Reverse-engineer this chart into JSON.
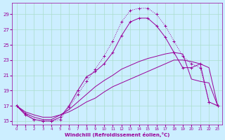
{
  "xlabel": "Windchill (Refroidissement éolien,°C)",
  "background_color": "#cceeff",
  "grid_color": "#aaddcc",
  "line_color": "#990099",
  "x_ticks": [
    0,
    1,
    2,
    3,
    4,
    5,
    6,
    7,
    8,
    9,
    10,
    11,
    12,
    13,
    14,
    15,
    16,
    17,
    18,
    19,
    20,
    21,
    22,
    23
  ],
  "ylim": [
    14.5,
    30.5
  ],
  "xlim": [
    -0.5,
    23.5
  ],
  "yticks": [
    15,
    17,
    19,
    21,
    23,
    25,
    27,
    29
  ],
  "curve_top_dotted_x": [
    0,
    1,
    2,
    3,
    4,
    5,
    6,
    7,
    8,
    9,
    10,
    11,
    12,
    13,
    14,
    15,
    16,
    17,
    18,
    19,
    20,
    21,
    22,
    23
  ],
  "curve_top_dotted_y": [
    17.0,
    16.0,
    15.2,
    15.0,
    15.0,
    15.2,
    16.8,
    18.5,
    20.2,
    21.8,
    23.5,
    25.5,
    28.0,
    29.5,
    29.8,
    29.8,
    29.0,
    27.5,
    25.5,
    23.5,
    22.5,
    22.0,
    17.5,
    17.0
  ],
  "curve_second_solid_x": [
    0,
    1,
    2,
    3,
    4,
    5,
    6,
    7,
    8,
    9,
    10,
    11,
    12,
    13,
    14,
    15,
    16,
    17,
    18,
    19,
    20,
    21,
    22,
    23
  ],
  "curve_second_solid_y": [
    17.0,
    15.8,
    15.2,
    15.0,
    15.0,
    15.5,
    17.0,
    19.0,
    20.8,
    21.5,
    22.5,
    24.0,
    26.2,
    28.0,
    28.5,
    28.5,
    27.5,
    26.0,
    24.0,
    22.0,
    22.0,
    22.5,
    17.5,
    17.0
  ],
  "curve_third_solid_x": [
    0,
    1,
    2,
    3,
    4,
    5,
    6,
    7,
    8,
    9,
    10,
    11,
    12,
    13,
    14,
    15,
    16,
    17,
    18,
    19,
    20,
    21,
    22,
    23
  ],
  "curve_third_solid_y": [
    17.0,
    16.0,
    15.5,
    15.2,
    15.2,
    15.8,
    16.5,
    17.5,
    18.5,
    19.5,
    20.3,
    21.0,
    21.8,
    22.3,
    22.8,
    23.2,
    23.5,
    23.8,
    24.0,
    23.8,
    20.5,
    20.2,
    20.0,
    17.0
  ],
  "curve_bottom_solid_x": [
    0,
    1,
    2,
    3,
    4,
    5,
    6,
    7,
    8,
    9,
    10,
    11,
    12,
    13,
    14,
    15,
    16,
    17,
    18,
    19,
    20,
    21,
    22,
    23
  ],
  "curve_bottom_solid_y": [
    17.0,
    16.2,
    15.8,
    15.5,
    15.5,
    15.8,
    16.2,
    16.8,
    17.5,
    18.0,
    18.8,
    19.5,
    20.0,
    20.5,
    21.0,
    21.5,
    22.0,
    22.5,
    23.0,
    23.0,
    22.8,
    22.5,
    22.0,
    17.0
  ]
}
